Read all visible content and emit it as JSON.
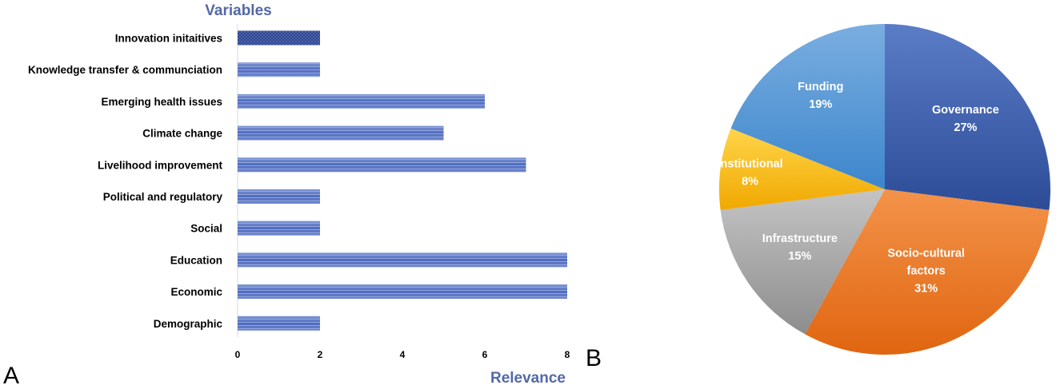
{
  "panels": {
    "a": "A",
    "b": "B"
  },
  "chart_data": [
    {
      "type": "bar",
      "orientation": "horizontal",
      "title": "Variables",
      "xlabel": "Relevance",
      "ylabel": "",
      "xlim": [
        0,
        8
      ],
      "xticks": [
        "0",
        "2",
        "4",
        "6",
        "8"
      ],
      "categories": [
        "Innovation initaitives",
        "Knowledge transfer & communciation",
        "Emerging health issues",
        "Climate change",
        "Livelihood improvement",
        "Political and regulatory",
        "Social",
        "Education",
        "Economic",
        "Demographic"
      ],
      "values": [
        2,
        2,
        6,
        5,
        7,
        2,
        2,
        8,
        8,
        2
      ],
      "bar_color": "#4F6BBF",
      "grid": false,
      "legend": "none"
    },
    {
      "type": "pie",
      "categories": [
        "Governance",
        "Socio-cultural factors",
        "Infrastructure",
        "Institutional",
        "Funding"
      ],
      "labels": [
        [
          "Governance",
          "27%"
        ],
        [
          "Socio-cultural",
          "factors",
          "31%"
        ],
        [
          "Infrastructure",
          "15%"
        ],
        [
          "Institutional",
          "8%"
        ],
        [
          "Funding",
          "19%"
        ]
      ],
      "values": [
        27,
        31,
        15,
        8,
        19
      ],
      "unit": "%",
      "colors": [
        "#3A5BAA",
        "#EE7A1F",
        "#A6A6A6",
        "#F2B90F",
        "#4A90D0"
      ],
      "legend": "none"
    }
  ]
}
